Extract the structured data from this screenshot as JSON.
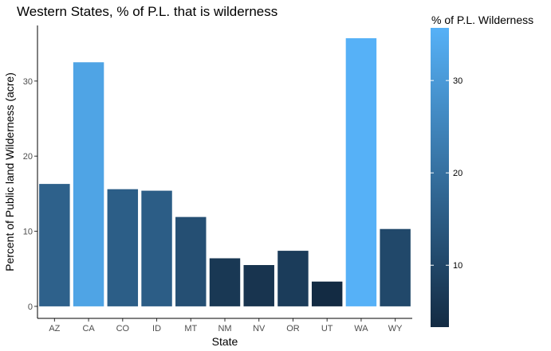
{
  "chart_data": {
    "type": "bar",
    "title": "Western States, % of P.L. that is wilderness",
    "xlabel": "State",
    "ylabel": "Percent of Public land Wilderness (acre)",
    "categories": [
      "AZ",
      "CA",
      "CO",
      "ID",
      "MT",
      "NM",
      "NV",
      "OR",
      "UT",
      "WA",
      "WY"
    ],
    "values": [
      16.3,
      32.5,
      15.6,
      15.4,
      11.9,
      6.4,
      5.5,
      7.4,
      3.3,
      35.7,
      10.3
    ],
    "ylim": [
      -1.6,
      37.4
    ],
    "yticks": [
      "0",
      "10",
      "20",
      "30"
    ],
    "grid": false,
    "legend": {
      "title": "% of P.L. Wilderness",
      "position": "right",
      "range": [
        3.3,
        35.7
      ],
      "ticks": [
        "10",
        "20",
        "30"
      ],
      "color_low": "#132B43",
      "color_high": "#56B1F7"
    }
  }
}
